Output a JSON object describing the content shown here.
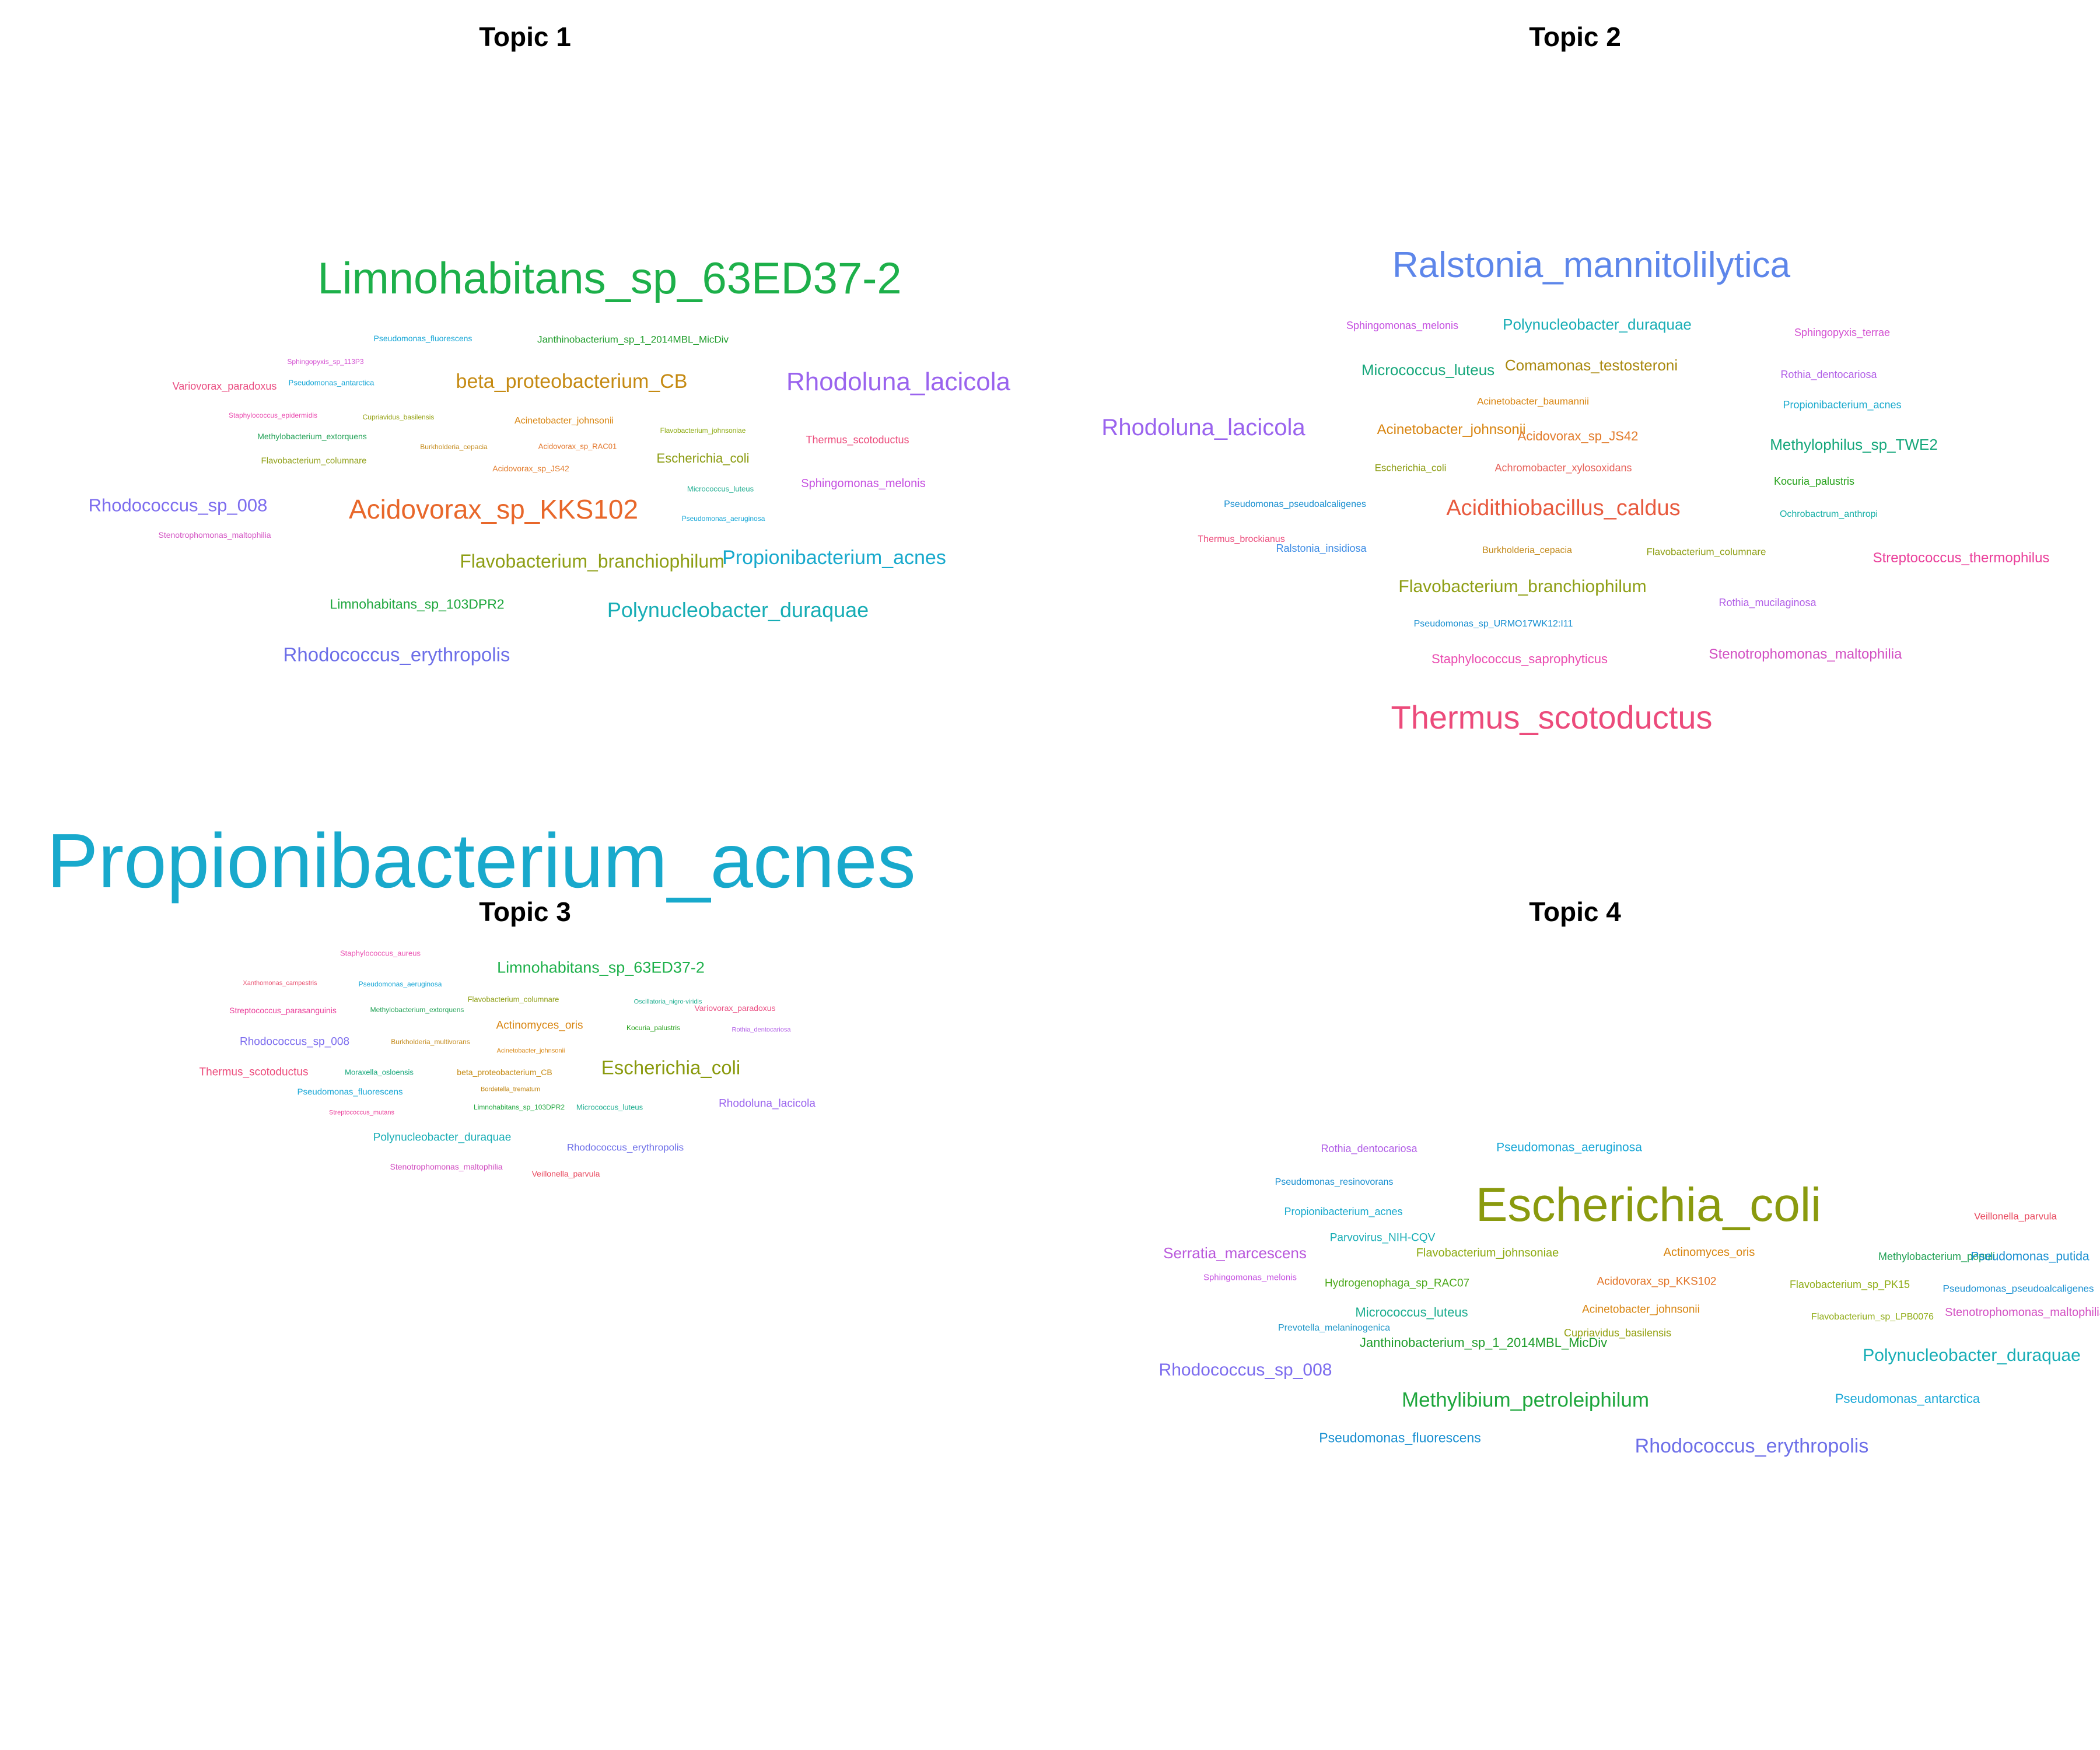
{
  "panels": [
    {
      "title": "Topic 1",
      "words": [
        {
          "text": "Limnohabitans_sp_63ED37-2",
          "size": 76,
          "color": "#1DB04A"
        },
        {
          "text": "Pseudomonas_fluorescens",
          "size": 14,
          "color": "#16A6D6"
        },
        {
          "text": "Janthinobacterium_sp_1_2014MBL_MicDiv",
          "size": 17,
          "color": "#1E9C2A"
        },
        {
          "text": "Sphingopyxis_sp_113P3",
          "size": 12,
          "color": "#D34FD1"
        },
        {
          "text": "Pseudomonas_antarctica",
          "size": 13,
          "color": "#16A6D6"
        },
        {
          "text": "beta_proteobacterium_CB",
          "size": 34,
          "color": "#C58A12"
        },
        {
          "text": "Rhodoluna_lacicola",
          "size": 44,
          "color": "#9A63EE"
        },
        {
          "text": "Variovorax_paradoxus",
          "size": 18,
          "color": "#EA4E82"
        },
        {
          "text": "Staphylococcus_epidermidis",
          "size": 12,
          "color": "#EA4CB0"
        },
        {
          "text": "Cupriavidus_basilensis",
          "size": 12,
          "color": "#93A010"
        },
        {
          "text": "Acinetobacter_johnsonii",
          "size": 16,
          "color": "#D8840F"
        },
        {
          "text": "Methylobacterium_extorquens",
          "size": 14,
          "color": "#23A257"
        },
        {
          "text": "Burkholderia_cepacia",
          "size": 12,
          "color": "#C3891A"
        },
        {
          "text": "Acidovorax_sp_RAC01",
          "size": 13,
          "color": "#E27326"
        },
        {
          "text": "Flavobacterium_johnsoniae",
          "size": 12,
          "color": "#8EAB13"
        },
        {
          "text": "Thermus_scotoductus",
          "size": 18,
          "color": "#EC4B7B"
        },
        {
          "text": "Flavobacterium_columnare",
          "size": 15,
          "color": "#8E9E14"
        },
        {
          "text": "Acidovorax_sp_JS42",
          "size": 14,
          "color": "#E27B2B"
        },
        {
          "text": "Escherichia_coli",
          "size": 22,
          "color": "#8A9A0E"
        },
        {
          "text": "Micrococcus_luteus",
          "size": 13,
          "color": "#1AAC8E"
        },
        {
          "text": "Sphingomonas_melonis",
          "size": 20,
          "color": "#C54FE0"
        },
        {
          "text": "Rhodococcus_sp_008",
          "size": 31,
          "color": "#7C6CEE"
        },
        {
          "text": "Acidovorax_sp_KKS102",
          "size": 46,
          "color": "#E8672A"
        },
        {
          "text": "Pseudomonas_aeruginosa",
          "size": 12,
          "color": "#16A6D6"
        },
        {
          "text": "Stenotrophomonas_maltophilia",
          "size": 14,
          "color": "#D24FC2"
        },
        {
          "text": "Flavobacterium_branchiophilum",
          "size": 32,
          "color": "#8E9E14"
        },
        {
          "text": "Propionibacterium_acnes",
          "size": 34,
          "color": "#18A9CC"
        },
        {
          "text": "Limnohabitans_sp_103DPR2",
          "size": 23,
          "color": "#1DA63C"
        },
        {
          "text": "Polynucleobacter_duraquae",
          "size": 36,
          "color": "#17ADB5"
        },
        {
          "text": "Rhodococcus_erythropolis",
          "size": 33,
          "color": "#6C6EE8"
        }
      ]
    },
    {
      "title": "Topic 2",
      "words": [
        {
          "text": "Ralstonia_mannitolilytica",
          "size": 62,
          "color": "#5D86EA"
        },
        {
          "text": "Sphingomonas_melonis",
          "size": 18,
          "color": "#C54FE0"
        },
        {
          "text": "Polynucleobacter_duraquae",
          "size": 26,
          "color": "#17ADB5"
        },
        {
          "text": "Sphingopyxis_terrae",
          "size": 18,
          "color": "#D34FD1"
        },
        {
          "text": "Micrococcus_luteus",
          "size": 26,
          "color": "#14A67A"
        },
        {
          "text": "Comamonas_testosteroni",
          "size": 26,
          "color": "#A9880E"
        },
        {
          "text": "Rothia_dentocariosa",
          "size": 18,
          "color": "#B05CE6"
        },
        {
          "text": "Acinetobacter_baumannii",
          "size": 17,
          "color": "#D8840F"
        },
        {
          "text": "Propionibacterium_acnes",
          "size": 18,
          "color": "#18A9CC"
        },
        {
          "text": "Rhodoluna_lacicola",
          "size": 40,
          "color": "#9A63EE"
        },
        {
          "text": "Acinetobacter_johnsonii",
          "size": 24,
          "color": "#D8840F"
        },
        {
          "text": "Acidovorax_sp_JS42",
          "size": 22,
          "color": "#E27B2B"
        },
        {
          "text": "Methylophilus_sp_TWE2",
          "size": 26,
          "color": "#14A67A"
        },
        {
          "text": "Escherichia_coli",
          "size": 17,
          "color": "#8A9A0E"
        },
        {
          "text": "Achromobacter_xylosoxidans",
          "size": 18,
          "color": "#E6625A"
        },
        {
          "text": "Kocuria_palustris",
          "size": 18,
          "color": "#27A21C"
        },
        {
          "text": "Pseudomonas_pseudoalcaligenes",
          "size": 16,
          "color": "#168ED0"
        },
        {
          "text": "Acidithiobacillus_caldus",
          "size": 38,
          "color": "#E85A3E"
        },
        {
          "text": "Ochrobactrum_anthropi",
          "size": 16,
          "color": "#17AFA6"
        },
        {
          "text": "Thermus_brockianus",
          "size": 16,
          "color": "#EC4B7B"
        },
        {
          "text": "Ralstonia_insidiosa",
          "size": 18,
          "color": "#3A8AE4"
        },
        {
          "text": "Burkholderia_cepacia",
          "size": 16,
          "color": "#C3891A"
        },
        {
          "text": "Flavobacterium_columnare",
          "size": 17,
          "color": "#8E9E14"
        },
        {
          "text": "Streptococcus_thermophilus",
          "size": 24,
          "color": "#EA3F9A"
        },
        {
          "text": "Flavobacterium_branchiophilum",
          "size": 30,
          "color": "#8E9E14"
        },
        {
          "text": "Rothia_mucilaginosa",
          "size": 18,
          "color": "#B05CE6"
        },
        {
          "text": "Pseudomonas_sp_URMO17WK12:I11",
          "size": 16,
          "color": "#168ED0"
        },
        {
          "text": "Staphylococcus_saprophyticus",
          "size": 22,
          "color": "#EA4CB0"
        },
        {
          "text": "Stenotrophomonas_maltophilia",
          "size": 24,
          "color": "#D24FC2"
        },
        {
          "text": "Thermus_scotoductus",
          "size": 56,
          "color": "#EC4B7B"
        }
      ]
    },
    {
      "title": "Topic 3",
      "words": [
        {
          "text": "Propionibacterium_acnes",
          "size": 132,
          "color": "#18A9CC"
        },
        {
          "text": "Staphylococcus_aureus",
          "size": 13,
          "color": "#EA4CB0"
        },
        {
          "text": "Limnohabitans_sp_63ED37-2",
          "size": 27,
          "color": "#1DB04A"
        },
        {
          "text": "Xanthomonas_campestris",
          "size": 11,
          "color": "#E85170"
        },
        {
          "text": "Pseudomonas_aeruginosa",
          "size": 12,
          "color": "#16A6D6"
        },
        {
          "text": "Flavobacterium_columnare",
          "size": 13,
          "color": "#8E9E14"
        },
        {
          "text": "Oscillatoria_nigro-viridis",
          "size": 11,
          "color": "#1AAC8E"
        },
        {
          "text": "Streptococcus_parasanguinis",
          "size": 14,
          "color": "#EA3F9A"
        },
        {
          "text": "Methylobacterium_extorquens",
          "size": 12,
          "color": "#23A257"
        },
        {
          "text": "Variovorax_paradoxus",
          "size": 14,
          "color": "#EA4E82"
        },
        {
          "text": "Actinomyces_oris",
          "size": 19,
          "color": "#D8840F"
        },
        {
          "text": "Kocuria_palustris",
          "size": 12,
          "color": "#27A21C"
        },
        {
          "text": "Rothia_dentocariosa",
          "size": 11,
          "color": "#B05CE6"
        },
        {
          "text": "Rhodococcus_sp_008",
          "size": 19,
          "color": "#7C6CEE"
        },
        {
          "text": "Burkholderia_multivorans",
          "size": 12,
          "color": "#C3891A"
        },
        {
          "text": "Acinetobacter_johnsonii",
          "size": 11,
          "color": "#D8840F"
        },
        {
          "text": "Thermus_scotoductus",
          "size": 19,
          "color": "#EC4B7B"
        },
        {
          "text": "Moraxella_osloensis",
          "size": 13,
          "color": "#14A67A"
        },
        {
          "text": "beta_proteobacterium_CB",
          "size": 14,
          "color": "#C58A12"
        },
        {
          "text": "Escherichia_coli",
          "size": 33,
          "color": "#8A9A0E"
        },
        {
          "text": "Bordetella_trematum",
          "size": 11,
          "color": "#C3891A"
        },
        {
          "text": "Pseudomonas_fluorescens",
          "size": 15,
          "color": "#16A6D6"
        },
        {
          "text": "Limnohabitans_sp_103DPR2",
          "size": 12,
          "color": "#1DA63C"
        },
        {
          "text": "Micrococcus_luteus",
          "size": 13,
          "color": "#1AAC8E"
        },
        {
          "text": "Rhodoluna_lacicola",
          "size": 19,
          "color": "#9A63EE"
        },
        {
          "text": "Streptococcus_mutans",
          "size": 11,
          "color": "#EA3F9A"
        },
        {
          "text": "Polynucleobacter_duraquae",
          "size": 19,
          "color": "#17ADB5"
        },
        {
          "text": "Rhodococcus_erythropolis",
          "size": 17,
          "color": "#6C6EE8"
        },
        {
          "text": "Stenotrophomonas_maltophilia",
          "size": 14,
          "color": "#D24FC2"
        },
        {
          "text": "Veillonella_parvula",
          "size": 14,
          "color": "#E8485E"
        }
      ]
    },
    {
      "title": "Topic 4",
      "words": [
        {
          "text": "Rothia_dentocariosa",
          "size": 18,
          "color": "#B05CE6"
        },
        {
          "text": "Pseudomonas_aeruginosa",
          "size": 21,
          "color": "#16A6D6"
        },
        {
          "text": "Pseudomonas_resinovorans",
          "size": 16,
          "color": "#168ED0"
        },
        {
          "text": "Escherichia_coli",
          "size": 82,
          "color": "#8A9A0E"
        },
        {
          "text": "Propionibacterium_acnes",
          "size": 18,
          "color": "#18A9CC"
        },
        {
          "text": "Veillonella_parvula",
          "size": 17,
          "color": "#E8485E"
        },
        {
          "text": "Parvovirus_NIH-CQV",
          "size": 19,
          "color": "#17ADB5"
        },
        {
          "text": "Serratia_marcescens",
          "size": 26,
          "color": "#B958DC"
        },
        {
          "text": "Flavobacterium_johnsoniae",
          "size": 20,
          "color": "#8EAB13"
        },
        {
          "text": "Actinomyces_oris",
          "size": 20,
          "color": "#D8840F"
        },
        {
          "text": "Methylobacterium_populi",
          "size": 18,
          "color": "#23A257"
        },
        {
          "text": "Pseudomonas_putida",
          "size": 21,
          "color": "#168ED0"
        },
        {
          "text": "Sphingomonas_melonis",
          "size": 15,
          "color": "#C54FE0"
        },
        {
          "text": "Hydrogenophaga_sp_RAC07",
          "size": 19,
          "color": "#4BA81A"
        },
        {
          "text": "Acidovorax_sp_KKS102",
          "size": 19,
          "color": "#E27326"
        },
        {
          "text": "Flavobacterium_sp_PK15",
          "size": 18,
          "color": "#8EAB13"
        },
        {
          "text": "Pseudomonas_pseudoalcaligenes",
          "size": 17,
          "color": "#168ED0"
        },
        {
          "text": "Micrococcus_luteus",
          "size": 22,
          "color": "#1AAC8E"
        },
        {
          "text": "Acinetobacter_johnsonii",
          "size": 19,
          "color": "#D8840F"
        },
        {
          "text": "Flavobacterium_sp_LPB0076",
          "size": 16,
          "color": "#8EAB13"
        },
        {
          "text": "Stenotrophomonas_maltophilia",
          "size": 20,
          "color": "#D24FC2"
        },
        {
          "text": "Prevotella_melaninogenica",
          "size": 16,
          "color": "#1E96C8"
        },
        {
          "text": "Cupriavidus_basilensis",
          "size": 18,
          "color": "#93A010"
        },
        {
          "text": "Janthinobacterium_sp_1_2014MBL_MicDiv",
          "size": 22,
          "color": "#1E9C2A"
        },
        {
          "text": "Polynucleobacter_duraquae",
          "size": 30,
          "color": "#17ADB5"
        },
        {
          "text": "Rhodococcus_sp_008",
          "size": 30,
          "color": "#7C6CEE"
        },
        {
          "text": "Methylibium_petroleiphilum",
          "size": 35,
          "color": "#1DA63C"
        },
        {
          "text": "Pseudomonas_antarctica",
          "size": 22,
          "color": "#16A6D6"
        },
        {
          "text": "Pseudomonas_fluorescens",
          "size": 23,
          "color": "#168ED0"
        },
        {
          "text": "Rhodococcus_erythropolis",
          "size": 34,
          "color": "#6C6EE8"
        }
      ]
    }
  ]
}
